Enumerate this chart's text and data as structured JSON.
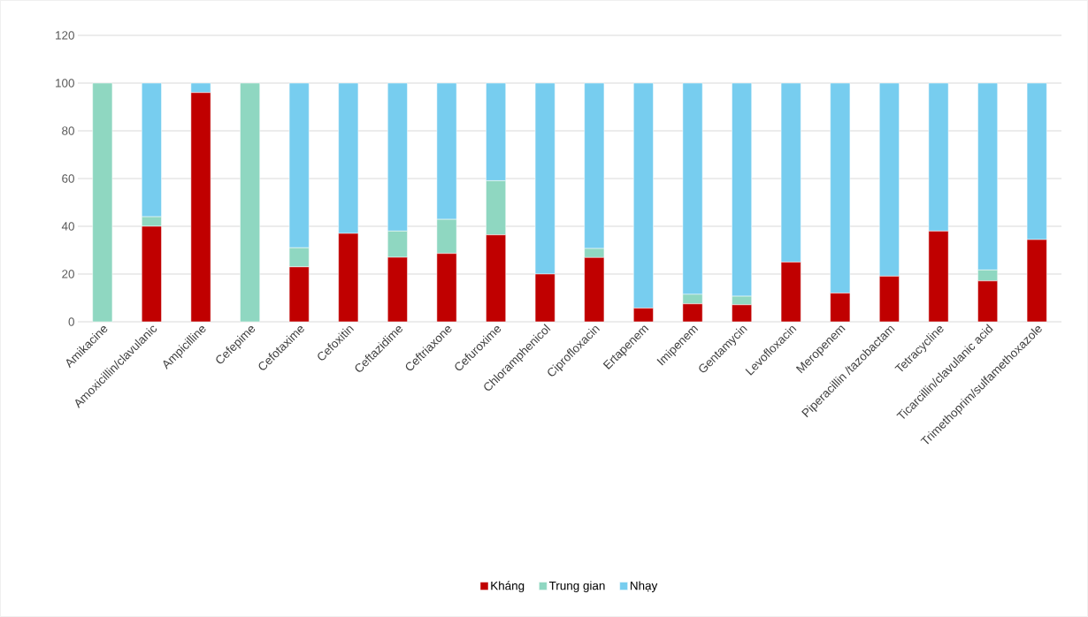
{
  "chart_data": {
    "type": "bar",
    "stacked": true,
    "categories": [
      "Amikacine",
      "Amoxicillin/clavulanic",
      "Ampicilline",
      "Cefepime",
      "Cefotaxime",
      "Cefoxitin",
      "Ceftazidime",
      "Ceftriaxone",
      "Cefuroxime",
      "Chloramphenicol",
      "Ciprofloxacin",
      "Ertapenem",
      "Imipenem",
      "Gentamycin",
      "Levofloxacin",
      "Meropenem",
      "Piperacillin /tazobactam",
      "Tetracycline",
      "Ticarcillin/clavulanic acid",
      "Trimethoprim/sulfamethoxazole"
    ],
    "series": [
      {
        "name": "Kháng",
        "color": "#c00000",
        "values": [
          0,
          40,
          96,
          0,
          23,
          37,
          27,
          28.6,
          36.4,
          20,
          26.9,
          5.7,
          7.5,
          7.1,
          25,
          12,
          19.1,
          38,
          17.1,
          34.4
        ]
      },
      {
        "name": "Trung gian",
        "color": "#8fd7c1",
        "values": [
          100,
          4,
          0,
          100,
          8,
          0,
          11,
          14.3,
          22.7,
          0,
          3.8,
          0,
          4,
          3.6,
          0,
          0,
          0,
          0,
          4.6,
          0
        ]
      },
      {
        "name": "Nhạy",
        "color": "#77cdef",
        "values": [
          0,
          56,
          4,
          0,
          69,
          63,
          62,
          57.1,
          40.9,
          80,
          69.3,
          94.3,
          88.5,
          89.3,
          75,
          88,
          80.9,
          62,
          78.3,
          65.6
        ]
      }
    ],
    "ylim": [
      0,
      120
    ],
    "yticks": [
      0,
      20,
      40,
      60,
      80,
      100,
      120
    ],
    "grid": "y",
    "legend": "bottom"
  }
}
